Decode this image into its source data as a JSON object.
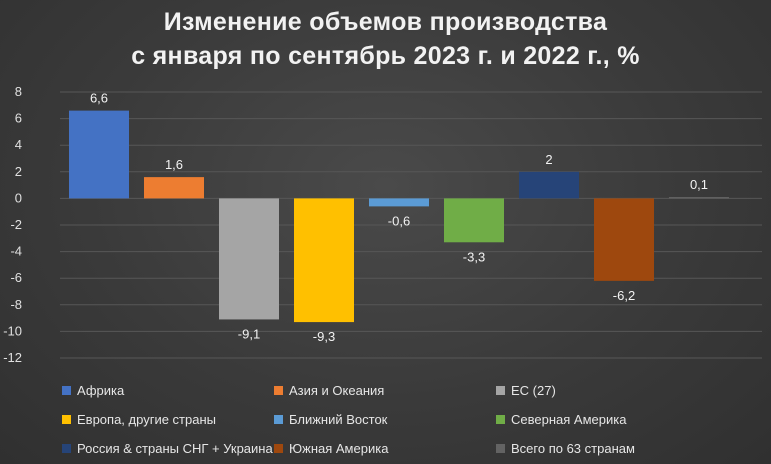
{
  "chart_data": {
    "type": "bar",
    "title_lines": [
      "Изменение объемов производства",
      "с января по сентябрь 2023 г. и 2022 г., %"
    ],
    "ylim": [
      -12,
      8
    ],
    "yticks": [
      8,
      6,
      4,
      2,
      0,
      -2,
      -4,
      -6,
      -8,
      -10,
      -12
    ],
    "grid": true,
    "legend_position": "bottom",
    "series": [
      {
        "name": "Африка",
        "value": 6.6,
        "label": "6,6",
        "color": "#4472c4"
      },
      {
        "name": "Азия и Океания",
        "value": 1.6,
        "label": "1,6",
        "color": "#ed7d31"
      },
      {
        "name": "ЕС (27)",
        "value": -9.1,
        "label": "-9,1",
        "color": "#a5a5a5"
      },
      {
        "name": "Европа, другие страны",
        "value": -9.3,
        "label": "-9,3",
        "color": "#ffc000"
      },
      {
        "name": "Ближний Восток",
        "value": -0.6,
        "label": "-0,6",
        "color": "#5b9bd5"
      },
      {
        "name": "Северная Америка",
        "value": -3.3,
        "label": "-3,3",
        "color": "#70ad47"
      },
      {
        "name": "Россия & страны СНГ + Украина",
        "value": 2,
        "label": "2",
        "color": "#264478"
      },
      {
        "name": "Южная Америка",
        "value": -6.2,
        "label": "-6,2",
        "color": "#9e480e"
      },
      {
        "name": "Всего по 63 странам",
        "value": 0.1,
        "label": "0,1",
        "color": "#636363"
      }
    ]
  }
}
